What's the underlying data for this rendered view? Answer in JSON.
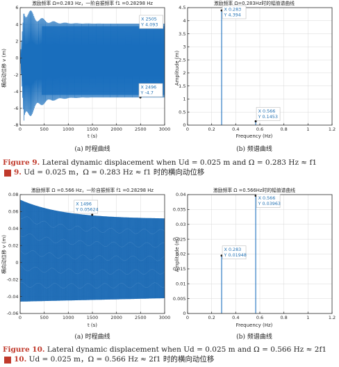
{
  "colors": {
    "signal": "#1a6fbd",
    "axis": "#262626",
    "grid": "#d9d9d9",
    "caption_label": "#c0392b",
    "datatip": "#1f6fb2"
  },
  "fig9": {
    "a": {
      "title": "激励频率 Ω=0.283 Hz，一阶自振频率 f1 =0.28298 Hz",
      "xlabel": "t (s)",
      "ylabel": "横向动位移 v (m)",
      "subcaption": "(a) 时程曲线",
      "tip1": {
        "x": "X 2505",
        "y": "Y 4.093"
      },
      "tip2": {
        "x": "X 2496",
        "y": "Y -4.7"
      }
    },
    "b": {
      "title": "激励频率 Ω=0.283Hz时的幅值谱曲线",
      "xlabel": "Frequency (Hz)",
      "ylabel": "Amplitude (m)",
      "subcaption": "(b) 频谱曲线",
      "tip1": {
        "x": "X 0.283",
        "y": "Y 4.394"
      },
      "tip2": {
        "x": "X 0.566",
        "y": "Y 0.1453"
      }
    },
    "caption_en_label": "Figure 9.",
    "caption_en_text": " Lateral dynamic displacement when Ud = 0.025 m and Ω = 0.283 Hz ≈ f1",
    "caption_cn_label": "9.",
    "caption_cn_text": " Ud = 0.025 m，Ω = 0.283 Hz ≈ f1 时的横向动位移"
  },
  "fig10": {
    "a": {
      "title": "激励频率 Ω =0.566 Hz，一阶自振频率 f1 =0.28298 Hz",
      "xlabel": "t (s)",
      "ylabel": "横向动位移 v (m)",
      "subcaption": "(a) 时程曲线",
      "tip1": {
        "x": "X 1496",
        "y": "Y 0.05624"
      }
    },
    "b": {
      "title": "激励频率 Ω =0.566Hz时的幅值谱曲线",
      "xlabel": "Frequency (Hz)",
      "ylabel": "Amplitude (m)",
      "subcaption": "(b) 频谱曲线",
      "tip1": {
        "x": "X 0.566",
        "y": "Y 0.03963"
      },
      "tip2": {
        "x": "X 0.283",
        "y": "Y 0.01948"
      }
    },
    "caption_en_label": "Figure 10.",
    "caption_en_text": " Lateral dynamic displacement when Ud = 0.025 m and Ω = 0.566 Hz ≈ 2f1",
    "caption_cn_label": "10.",
    "caption_cn_text": " Ud = 0.025 m，Ω = 0.566 Hz ≈ 2f1 时的横向动位移"
  },
  "chart_data": [
    {
      "id": "fig9a",
      "type": "line",
      "title": "激励频率 Ω=0.283 Hz，一阶自振频率 f1 =0.28298 Hz",
      "xlabel": "t (s)",
      "ylabel": "横向动位移 v (m)",
      "xlim": [
        0,
        3000
      ],
      "ylim": [
        -8,
        6
      ],
      "xticks": [
        0,
        500,
        1000,
        1500,
        2000,
        2500,
        3000
      ],
      "yticks": [
        -8,
        -6,
        -4,
        -2,
        0,
        2,
        4,
        6
      ],
      "grid": true,
      "envelope": {
        "steady_upper": 4.093,
        "steady_lower": -4.7,
        "peak_upper": 5.9,
        "peak_lower": -7.6
      },
      "points": [
        {
          "x": 2505,
          "y": 4.093
        },
        {
          "x": 2496,
          "y": -4.7
        }
      ]
    },
    {
      "id": "fig9b",
      "type": "bar",
      "title": "激励频率 Ω=0.283Hz时的幅值谱曲线",
      "xlabel": "Frequency (Hz)",
      "ylabel": "Amplitude (m)",
      "xlim": [
        0,
        1.2
      ],
      "ylim": [
        0,
        4.5
      ],
      "xticks": [
        0,
        0.2,
        0.4,
        0.6,
        0.8,
        1,
        1.2
      ],
      "yticks": [
        0,
        0.5,
        1,
        1.5,
        2,
        2.5,
        3,
        3.5,
        4,
        4.5
      ],
      "grid": true,
      "points": [
        {
          "x": 0.283,
          "y": 4.394
        },
        {
          "x": 0.566,
          "y": 0.1453
        }
      ]
    },
    {
      "id": "fig10a",
      "type": "line",
      "title": "激励频率 Ω =0.566 Hz，一阶自振频率 f1 =0.28298 Hz",
      "xlabel": "t (s)",
      "ylabel": "横向动位移 v (m)",
      "xlim": [
        0,
        3000
      ],
      "ylim": [
        -0.06,
        0.08
      ],
      "xticks": [
        0,
        500,
        1000,
        1500,
        2000,
        2500,
        3000
      ],
      "yticks": [
        -0.06,
        -0.04,
        -0.02,
        0,
        0.02,
        0.04,
        0.06,
        0.08
      ],
      "grid": true,
      "envelope": {
        "start_upper": 0.074,
        "end_upper": 0.052,
        "start_lower": -0.046,
        "end_lower": -0.042
      },
      "points": [
        {
          "x": 1496,
          "y": 0.05624
        }
      ]
    },
    {
      "id": "fig10b",
      "type": "bar",
      "title": "激励频率 Ω =0.566Hz时的幅值谱曲线",
      "xlabel": "Frequency (Hz)",
      "ylabel": "Amplitude (m)",
      "xlim": [
        0,
        1.2
      ],
      "ylim": [
        0,
        0.04
      ],
      "xticks": [
        0,
        0.2,
        0.4,
        0.6,
        0.8,
        1,
        1.2
      ],
      "yticks": [
        0,
        0.005,
        0.01,
        0.015,
        0.02,
        0.025,
        0.03,
        0.035,
        0.04
      ],
      "grid": true,
      "points": [
        {
          "x": 0.566,
          "y": 0.03963
        },
        {
          "x": 0.283,
          "y": 0.01948
        }
      ]
    }
  ]
}
